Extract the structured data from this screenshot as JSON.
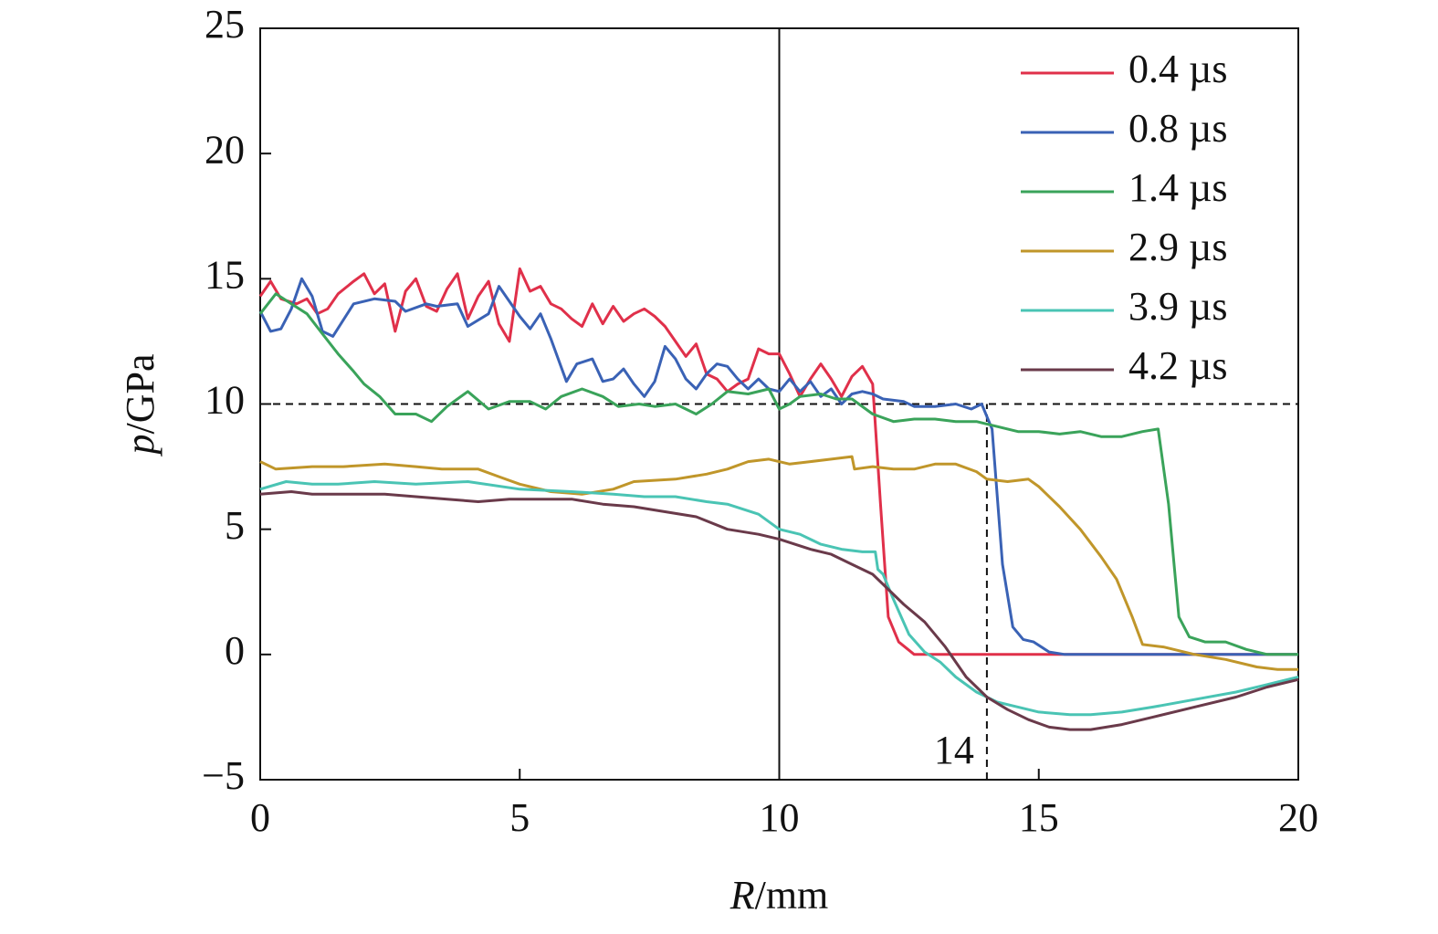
{
  "chart_data": {
    "type": "line",
    "xlabel": "R/mm",
    "ylabel": "p/GPa",
    "xlim": [
      0,
      20
    ],
    "ylim": [
      -5,
      25
    ],
    "xticks": [
      0,
      5,
      10,
      15,
      20
    ],
    "yticks": [
      {
        "value": -5,
        "label": "−5"
      },
      0,
      5,
      10,
      15,
      20,
      25
    ],
    "legend": "upper right",
    "hlines": [
      {
        "y": 10,
        "style": "dashed"
      }
    ],
    "vlines": [
      {
        "x": 10,
        "style": "solid"
      },
      {
        "x": 14,
        "style": "dashed",
        "ymax": 10,
        "label": "14"
      }
    ],
    "series": [
      {
        "name": "0.4 µs",
        "color": "#e0304a",
        "x": [
          0,
          0.2,
          0.4,
          0.7,
          0.9,
          1.1,
          1.3,
          1.5,
          1.8,
          2.0,
          2.2,
          2.4,
          2.6,
          2.8,
          3.0,
          3.2,
          3.4,
          3.6,
          3.8,
          4.0,
          4.2,
          4.4,
          4.6,
          4.8,
          5.0,
          5.2,
          5.4,
          5.6,
          5.8,
          6.0,
          6.2,
          6.4,
          6.6,
          6.8,
          7.0,
          7.2,
          7.4,
          7.6,
          7.8,
          8.0,
          8.2,
          8.4,
          8.6,
          8.8,
          9.0,
          9.2,
          9.4,
          9.6,
          9.8,
          10.0,
          10.2,
          10.4,
          10.6,
          10.8,
          11.0,
          11.2,
          11.4,
          11.6,
          11.8,
          11.95,
          12.1,
          12.3,
          12.6,
          20
        ],
        "values": [
          14.3,
          14.9,
          14.2,
          14.0,
          14.2,
          13.6,
          13.8,
          14.4,
          14.9,
          15.2,
          14.4,
          14.8,
          12.9,
          14.5,
          15.0,
          13.9,
          13.7,
          14.6,
          15.2,
          13.4,
          14.3,
          14.9,
          13.2,
          12.5,
          15.4,
          14.5,
          14.7,
          14.0,
          13.8,
          13.4,
          13.1,
          14.0,
          13.2,
          13.9,
          13.3,
          13.6,
          13.8,
          13.5,
          13.1,
          12.5,
          11.9,
          12.4,
          11.2,
          11.0,
          10.5,
          10.8,
          11.0,
          12.2,
          12.0,
          12.0,
          11.2,
          10.3,
          11.0,
          11.6,
          11.0,
          10.3,
          11.1,
          11.5,
          10.8,
          6,
          1.5,
          0.5,
          0,
          0
        ]
      },
      {
        "name": "0.8 µs",
        "color": "#3a62b5",
        "x": [
          0,
          0.2,
          0.4,
          0.6,
          0.8,
          1.0,
          1.2,
          1.4,
          1.8,
          2.2,
          2.6,
          2.8,
          3.2,
          3.4,
          3.8,
          4.0,
          4.4,
          4.6,
          5.0,
          5.2,
          5.4,
          5.6,
          5.9,
          6.1,
          6.4,
          6.6,
          6.8,
          7.0,
          7.2,
          7.4,
          7.6,
          7.8,
          8.0,
          8.2,
          8.4,
          8.6,
          8.8,
          9.0,
          9.2,
          9.4,
          9.6,
          9.8,
          10.0,
          10.2,
          10.4,
          10.6,
          10.8,
          11.0,
          11.2,
          11.4,
          11.6,
          11.8,
          12.0,
          12.4,
          12.6,
          13.0,
          13.4,
          13.7,
          13.9,
          14.1,
          14.3,
          14.5,
          14.7,
          14.9,
          15.2,
          15.5,
          20
        ],
        "values": [
          13.7,
          12.9,
          13.0,
          13.8,
          15.0,
          14.3,
          12.9,
          12.7,
          14.0,
          14.2,
          14.1,
          13.7,
          14.0,
          13.9,
          14.0,
          13.1,
          13.6,
          14.7,
          13.5,
          13.0,
          13.6,
          12.6,
          10.9,
          11.6,
          11.8,
          10.9,
          11.0,
          11.4,
          10.8,
          10.3,
          10.9,
          12.3,
          11.8,
          11.0,
          10.6,
          11.2,
          11.6,
          11.5,
          11.0,
          10.6,
          11.0,
          10.6,
          10.5,
          11.0,
          10.5,
          10.9,
          10.3,
          10.6,
          10.0,
          10.4,
          10.5,
          10.4,
          10.2,
          10.1,
          9.9,
          9.9,
          10.0,
          9.8,
          10.0,
          9.0,
          3.6,
          1.1,
          0.6,
          0.5,
          0.1,
          0,
          0
        ]
      },
      {
        "name": "1.4 µs",
        "color": "#3aa35a",
        "x": [
          0,
          0.3,
          0.6,
          0.9,
          1.2,
          1.5,
          1.8,
          2.0,
          2.3,
          2.6,
          3.0,
          3.3,
          3.6,
          4.0,
          4.4,
          4.8,
          5.2,
          5.5,
          5.8,
          6.2,
          6.6,
          6.9,
          7.3,
          7.6,
          8.0,
          8.4,
          8.7,
          9.0,
          9.4,
          9.8,
          10.0,
          10.2,
          10.4,
          10.8,
          11.1,
          11.4,
          11.8,
          12.2,
          12.6,
          13.0,
          13.4,
          13.8,
          14.2,
          14.6,
          15.0,
          15.4,
          15.8,
          16.2,
          16.6,
          17.0,
          17.3,
          17.5,
          17.7,
          17.9,
          18.2,
          18.6,
          19.0,
          19.4,
          20
        ],
        "values": [
          13.6,
          14.4,
          14.0,
          13.6,
          12.8,
          12.0,
          11.3,
          10.8,
          10.3,
          9.6,
          9.6,
          9.3,
          9.9,
          10.5,
          9.8,
          10.1,
          10.1,
          9.8,
          10.3,
          10.6,
          10.3,
          9.9,
          10.0,
          9.9,
          10.0,
          9.6,
          10.0,
          10.5,
          10.4,
          10.6,
          9.8,
          10.0,
          10.3,
          10.4,
          10.2,
          10.2,
          9.6,
          9.3,
          9.4,
          9.4,
          9.3,
          9.3,
          9.1,
          8.9,
          8.9,
          8.8,
          8.9,
          8.7,
          8.7,
          8.9,
          9.0,
          6.0,
          1.5,
          0.7,
          0.5,
          0.5,
          0.2,
          0,
          0
        ]
      },
      {
        "name": "2.9 µs",
        "color": "#c0962a",
        "x": [
          0,
          0.3,
          1,
          1.6,
          2.4,
          3.0,
          3.5,
          4.2,
          4.6,
          5.0,
          5.6,
          6.2,
          6.8,
          7.2,
          8.0,
          8.6,
          9.0,
          9.4,
          9.8,
          10.2,
          10.6,
          11.0,
          11.4,
          11.45,
          11.8,
          12.2,
          12.6,
          13.0,
          13.4,
          13.8,
          14.0,
          14.4,
          14.8,
          15.0,
          15.4,
          15.8,
          16.2,
          16.5,
          16.8,
          17.0,
          17.4,
          18.0,
          18.6,
          19.2,
          19.6,
          20
        ],
        "values": [
          7.7,
          7.4,
          7.5,
          7.5,
          7.6,
          7.5,
          7.4,
          7.4,
          7.1,
          6.8,
          6.5,
          6.4,
          6.6,
          6.9,
          7.0,
          7.2,
          7.4,
          7.7,
          7.8,
          7.6,
          7.7,
          7.8,
          7.9,
          7.4,
          7.5,
          7.4,
          7.4,
          7.6,
          7.6,
          7.3,
          7.0,
          6.9,
          7.0,
          6.7,
          5.9,
          5.0,
          3.9,
          3.0,
          1.5,
          0.4,
          0.3,
          0.0,
          -0.2,
          -0.5,
          -0.6,
          -0.6
        ]
      },
      {
        "name": "3.9 µs",
        "color": "#4ac4b4",
        "x": [
          0,
          0.5,
          1.0,
          1.5,
          2.2,
          3.0,
          4.0,
          5.0,
          6.0,
          6.8,
          7.4,
          8.0,
          8.6,
          9.0,
          9.6,
          10.0,
          10.4,
          10.8,
          11.2,
          11.6,
          11.85,
          11.9,
          12.0,
          12.2,
          12.5,
          12.8,
          13.1,
          13.4,
          13.8,
          14.2,
          14.6,
          15.0,
          15.6,
          16.0,
          16.6,
          17.2,
          18.0,
          18.8,
          19.4,
          20
        ],
        "values": [
          6.6,
          6.9,
          6.8,
          6.8,
          6.9,
          6.8,
          6.9,
          6.6,
          6.5,
          6.4,
          6.3,
          6.3,
          6.1,
          6.0,
          5.6,
          5.0,
          4.8,
          4.4,
          4.2,
          4.1,
          4.1,
          3.4,
          3.2,
          2.2,
          0.8,
          0.1,
          -0.3,
          -0.9,
          -1.5,
          -1.9,
          -2.1,
          -2.3,
          -2.4,
          -2.4,
          -2.3,
          -2.1,
          -1.8,
          -1.5,
          -1.2,
          -0.9
        ]
      },
      {
        "name": "4.2 µs",
        "color": "#6a3a4a",
        "x": [
          0,
          0.6,
          1.0,
          1.6,
          2.4,
          3.0,
          3.6,
          4.2,
          4.8,
          5.4,
          6.0,
          6.6,
          7.2,
          7.8,
          8.4,
          9.0,
          9.6,
          10.0,
          10.6,
          11.0,
          11.4,
          11.8,
          12.1,
          12.4,
          12.8,
          13.2,
          13.6,
          14.0,
          14.4,
          14.8,
          15.2,
          15.6,
          16.0,
          16.6,
          17.2,
          18.0,
          18.8,
          19.4,
          20
        ],
        "values": [
          6.4,
          6.5,
          6.4,
          6.4,
          6.4,
          6.3,
          6.2,
          6.1,
          6.2,
          6.2,
          6.2,
          6.0,
          5.9,
          5.7,
          5.5,
          5.0,
          4.8,
          4.6,
          4.2,
          4.0,
          3.6,
          3.2,
          2.6,
          2.0,
          1.3,
          0.3,
          -0.9,
          -1.7,
          -2.2,
          -2.6,
          -2.9,
          -3.0,
          -3.0,
          -2.8,
          -2.5,
          -2.1,
          -1.7,
          -1.3,
          -1.0
        ]
      }
    ]
  }
}
